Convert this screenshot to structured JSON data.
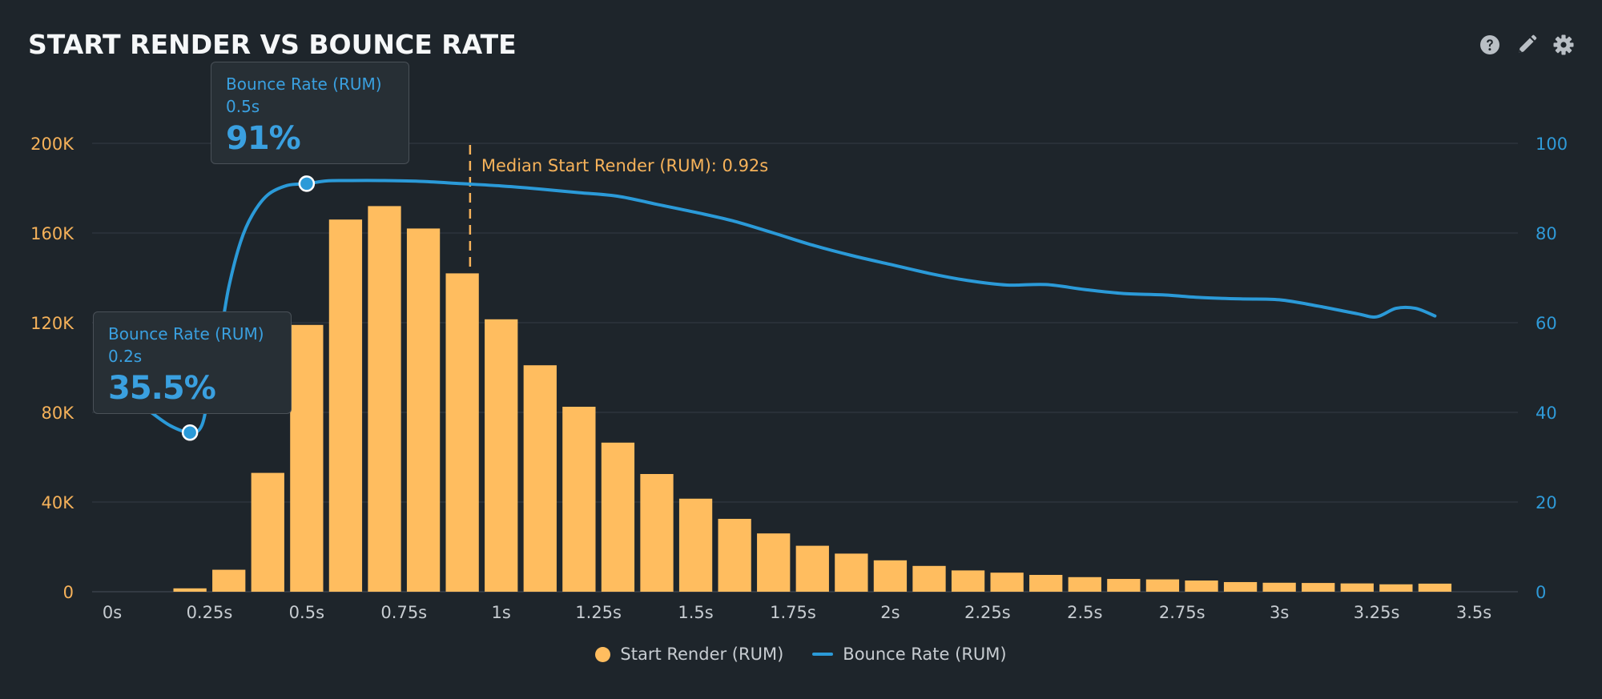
{
  "header": {
    "title": "START RENDER VS BOUNCE RATE",
    "help_icon": "question-circle-icon",
    "edit_icon": "pencil-icon",
    "settings_icon": "gear-icon"
  },
  "colors": {
    "background": "#1e252b",
    "bar": "#ffbd5f",
    "line": "#2b9ad8",
    "grid": "#2d353c",
    "left_axis_text": "#f6b25a",
    "right_axis_text": "#2f9ad8",
    "median": "#f6b25a"
  },
  "chart_data": {
    "type": "bar+line",
    "title": "START RENDER VS BOUNCE RATE",
    "xlim": [
      0,
      3.5
    ],
    "x_ticks": [
      "0s",
      "0.25s",
      "0.5s",
      "0.75s",
      "1s",
      "1.25s",
      "1.5s",
      "1.75s",
      "2s",
      "2.25s",
      "2.5s",
      "2.75s",
      "3s",
      "3.25s",
      "3.5s"
    ],
    "y_left": {
      "ylim": [
        0,
        200000
      ],
      "tick_labels": [
        "0",
        "40K",
        "80K",
        "120K",
        "160K",
        "200K"
      ]
    },
    "y_right": {
      "ylim": [
        0,
        100
      ],
      "tick_labels": [
        "0",
        "20",
        "40",
        "60",
        "80",
        "100"
      ]
    },
    "series": [
      {
        "name": "Start Render (RUM)",
        "type": "bar",
        "axis": "left",
        "x": [
          0.2,
          0.3,
          0.4,
          0.5,
          0.6,
          0.7,
          0.8,
          0.9,
          1.0,
          1.1,
          1.2,
          1.3,
          1.4,
          1.5,
          1.6,
          1.7,
          1.8,
          1.9,
          2.0,
          2.1,
          2.2,
          2.3,
          2.4,
          2.5,
          2.6,
          2.7,
          2.8,
          2.9,
          3.0,
          3.1,
          3.2,
          3.3,
          3.4
        ],
        "values": [
          1500,
          9800,
          53000,
          119000,
          166000,
          172000,
          162000,
          142000,
          121500,
          101000,
          82500,
          66500,
          52500,
          41500,
          32500,
          26000,
          20500,
          17000,
          14000,
          11500,
          9500,
          8500,
          7500,
          6500,
          5700,
          5500,
          5000,
          4300,
          4000,
          3900,
          3700,
          3300,
          3600
        ]
      },
      {
        "name": "Bounce Rate (RUM)",
        "type": "line",
        "axis": "right",
        "x": [
          0.1,
          0.15,
          0.2,
          0.23,
          0.25,
          0.28,
          0.3,
          0.33,
          0.36,
          0.4,
          0.45,
          0.5,
          0.55,
          0.6,
          0.7,
          0.8,
          0.9,
          1.0,
          1.1,
          1.2,
          1.3,
          1.4,
          1.5,
          1.6,
          1.7,
          1.8,
          1.9,
          2.0,
          2.1,
          2.2,
          2.3,
          2.4,
          2.5,
          2.6,
          2.7,
          2.8,
          2.9,
          3.0,
          3.1,
          3.2,
          3.25,
          3.3,
          3.35,
          3.4
        ],
        "values": [
          40,
          37,
          35.5,
          37,
          45,
          58,
          68,
          78,
          84,
          88.5,
          90.6,
          91,
          91.6,
          91.7,
          91.7,
          91.5,
          91,
          90.5,
          89.8,
          89,
          88.2,
          86.4,
          84.6,
          82.6,
          80,
          77.3,
          75,
          73,
          71,
          69.4,
          68.4,
          68.5,
          67.4,
          66.5,
          66.2,
          65.6,
          65.3,
          65.1,
          63.7,
          62,
          61.3,
          63.2,
          63.2,
          61.5
        ]
      }
    ],
    "median_line": {
      "x": 0.92,
      "label": "Median Start Render (RUM): 0.92s"
    },
    "highlighted_points": [
      {
        "x": 0.2,
        "y": 35.5
      },
      {
        "x": 0.5,
        "y": 91
      }
    ]
  },
  "tooltips": [
    {
      "series": "Bounce Rate (RUM)",
      "x_label": "0.5s",
      "value": "91%"
    },
    {
      "series": "Bounce Rate (RUM)",
      "x_label": "0.2s",
      "value": "35.5%"
    }
  ],
  "legend": [
    {
      "label": "Start Render (RUM)",
      "marker": "circle"
    },
    {
      "label": "Bounce Rate (RUM)",
      "marker": "line"
    }
  ]
}
